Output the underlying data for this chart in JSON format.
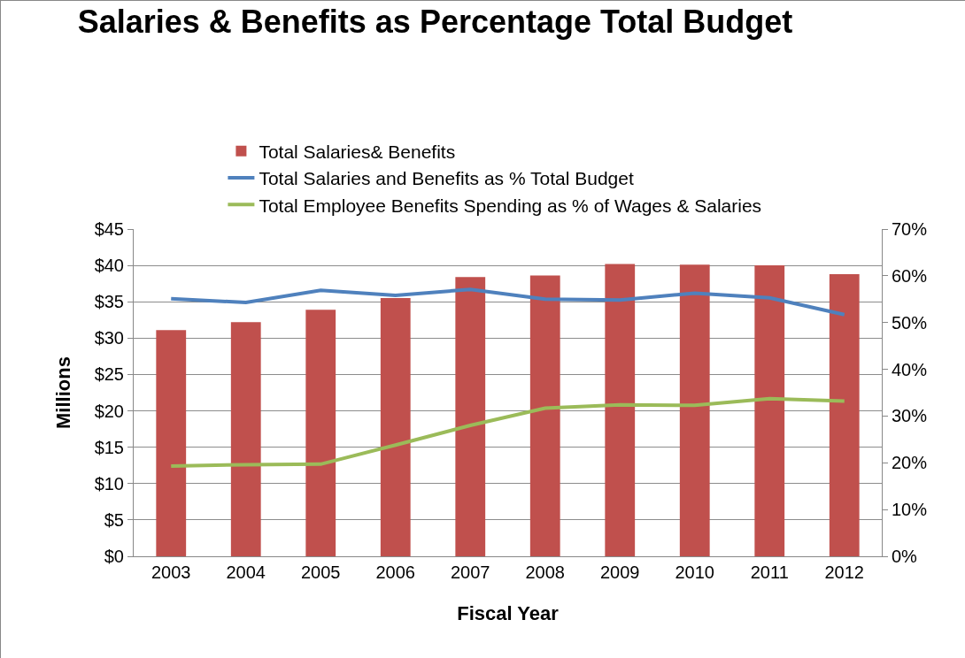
{
  "chart_data": {
    "type": "bar",
    "title": "Salaries & Benefits as Percentage Total Budget",
    "xlabel": "Fiscal Year",
    "ylabel": "Millions",
    "categories": [
      "2003",
      "2004",
      "2005",
      "2006",
      "2007",
      "2008",
      "2009",
      "2010",
      "2011",
      "2012"
    ],
    "series": [
      {
        "name": "Total Salaries& Benefits",
        "color": "#c0504d",
        "values": [
          31.1,
          32.2,
          33.9,
          35.5,
          38.4,
          38.6,
          40.2,
          40.1,
          40.0,
          38.8
        ]
      },
      {
        "name": "Total Salaries and Benefits as % Total Budget",
        "type": "line",
        "axis": "y2",
        "color": "#4f81bd",
        "values": [
          55.1,
          54.3,
          56.9,
          55.8,
          57.1,
          55.0,
          54.8,
          56.3,
          55.3,
          51.7
        ]
      },
      {
        "name": "Total Employee Benefits Spending as % of Wages & Salaries",
        "type": "line",
        "axis": "y2",
        "color": "#9bbb59",
        "values": [
          19.3,
          19.6,
          19.7,
          23.8,
          28.0,
          31.7,
          32.4,
          32.3,
          33.7,
          33.2
        ]
      }
    ],
    "ylim": [
      0,
      45
    ],
    "yticks": [
      {
        "value": 0,
        "label": "$0"
      },
      {
        "value": 5,
        "label": "$5"
      },
      {
        "value": 10,
        "label": "$10"
      },
      {
        "value": 15,
        "label": "$15"
      },
      {
        "value": 20,
        "label": "$20"
      },
      {
        "value": 25,
        "label": "$25"
      },
      {
        "value": 30,
        "label": "$30"
      },
      {
        "value": 35,
        "label": "$35"
      },
      {
        "value": 40,
        "label": "$40"
      },
      {
        "value": 45,
        "label": "$45"
      }
    ],
    "y2lim": [
      0,
      70
    ],
    "y2ticks": [
      {
        "value": 0,
        "label": "0%"
      },
      {
        "value": 10,
        "label": "10%"
      },
      {
        "value": 20,
        "label": "20%"
      },
      {
        "value": 30,
        "label": "30%"
      },
      {
        "value": 40,
        "label": "40%"
      },
      {
        "value": 50,
        "label": "50%"
      },
      {
        "value": 60,
        "label": "60%"
      },
      {
        "value": 70,
        "label": "70%"
      }
    ],
    "grid": "y",
    "legend": "top",
    "marker": "none",
    "line_style": "solid"
  }
}
